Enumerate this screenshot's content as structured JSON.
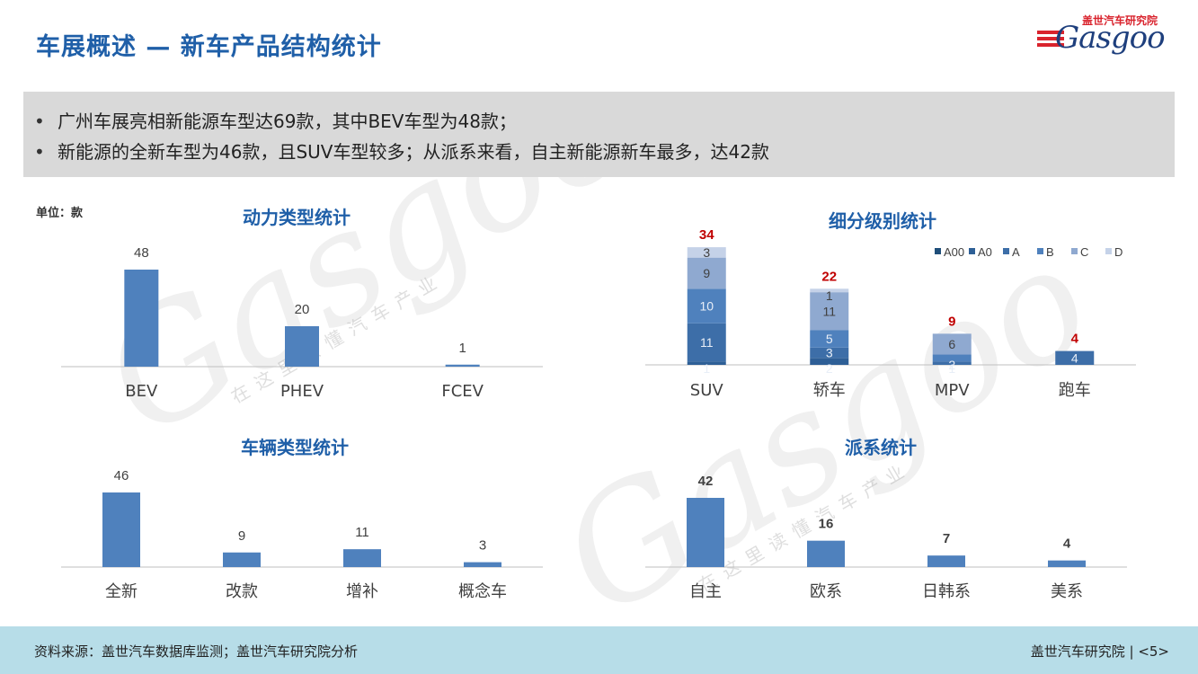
{
  "title": "车展概述 — 新车产品结构统计",
  "logo": {
    "top_text": "盖世汽车研究院",
    "main_text": "Gasgoo"
  },
  "summary": [
    "广州车展亮相新能源车型达69款，其中BEV车型为48款；",
    "新能源的全新车型为46款，且SUV车型较多；从派系来看，自主新能源新车最多，达42款"
  ],
  "unit": "单位：款",
  "watermark": {
    "text": "Gasgoo",
    "sub": "在这里读懂汽车产业"
  },
  "footer": {
    "source": "资料来源：盖世汽车数据库监测；盖世汽车研究院分析",
    "org": "盖世汽车研究院",
    "page": "<5>"
  },
  "colors": {
    "bar": "#4f81bd",
    "title": "#1f5fa8",
    "total_label": "#c00000"
  },
  "chart_data": [
    {
      "id": "power",
      "type": "bar",
      "title": "动力类型统计",
      "categories": [
        "BEV",
        "PHEV",
        "FCEV"
      ],
      "values": [
        48,
        20,
        1
      ]
    },
    {
      "id": "segment",
      "type": "bar",
      "stacked": true,
      "title": "细分级别统计",
      "categories": [
        "SUV",
        "轿车",
        "MPV",
        "跑车"
      ],
      "series": [
        {
          "name": "A00",
          "color": "#1f4e79",
          "values": [
            0,
            0,
            0,
            0
          ]
        },
        {
          "name": "A0",
          "color": "#2e5f96",
          "values": [
            1,
            2,
            0,
            0
          ]
        },
        {
          "name": "A",
          "color": "#3d6ea8",
          "values": [
            11,
            3,
            1,
            4
          ]
        },
        {
          "name": "B",
          "color": "#4f81bd",
          "values": [
            10,
            5,
            2,
            0
          ]
        },
        {
          "name": "C",
          "color": "#8fa9d0",
          "values": [
            9,
            11,
            6,
            0
          ]
        },
        {
          "name": "D",
          "color": "#c5d2e8",
          "values": [
            3,
            1,
            0,
            0
          ]
        }
      ],
      "totals": [
        34,
        22,
        9,
        4
      ],
      "legend": "top-right"
    },
    {
      "id": "vehicle",
      "type": "bar",
      "title": "车辆类型统计",
      "categories": [
        "全新",
        "改款",
        "增补",
        "概念车"
      ],
      "values": [
        46,
        9,
        11,
        3
      ]
    },
    {
      "id": "faction",
      "type": "bar",
      "title": "派系统计",
      "categories": [
        "自主",
        "欧系",
        "日韩系",
        "美系"
      ],
      "values": [
        42,
        16,
        7,
        4
      ]
    }
  ]
}
